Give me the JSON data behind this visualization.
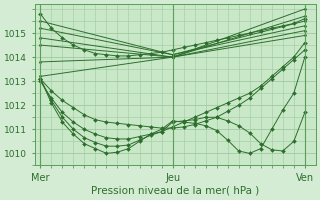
{
  "background_color": "#d4ecd4",
  "plot_bg_color": "#c8e8c8",
  "grid_color": "#a0c8a0",
  "line_color": "#2d6e2d",
  "marker_color": "#2d6e2d",
  "xlabel": "Pression niveau de la mer( hPa )",
  "ylim": [
    1009.5,
    1016.2
  ],
  "yticks": [
    1010,
    1011,
    1012,
    1013,
    1014,
    1015
  ],
  "xtick_labels": [
    "Mer",
    "Jeu",
    "Ven"
  ],
  "xtick_positions": [
    0,
    12,
    24
  ],
  "xlim": [
    -0.5,
    25
  ],
  "series": [
    {
      "x": [
        0,
        1,
        2,
        3,
        4,
        5,
        6,
        7,
        8,
        9,
        10,
        11,
        12,
        13,
        14,
        15,
        16,
        17,
        18,
        19,
        20,
        21,
        22,
        23,
        24
      ],
      "y": [
        1015.8,
        1015.2,
        1014.8,
        1014.5,
        1014.3,
        1014.15,
        1014.1,
        1014.05,
        1014.05,
        1014.1,
        1014.15,
        1014.2,
        1014.3,
        1014.4,
        1014.5,
        1014.6,
        1014.7,
        1014.8,
        1014.9,
        1015.0,
        1015.1,
        1015.2,
        1015.3,
        1015.4,
        1015.6
      ]
    },
    {
      "x": [
        0,
        12,
        24
      ],
      "y": [
        1015.5,
        1014.1,
        1015.5
      ]
    },
    {
      "x": [
        0,
        12,
        24
      ],
      "y": [
        1015.2,
        1014.1,
        1015.3
      ]
    },
    {
      "x": [
        0,
        12,
        24
      ],
      "y": [
        1014.8,
        1014.0,
        1015.1
      ]
    },
    {
      "x": [
        0,
        12,
        24
      ],
      "y": [
        1014.5,
        1014.0,
        1014.9
      ]
    },
    {
      "x": [
        0,
        12,
        24
      ],
      "y": [
        1013.8,
        1014.0,
        1015.7
      ]
    },
    {
      "x": [
        0,
        12,
        24
      ],
      "y": [
        1013.2,
        1014.0,
        1016.0
      ]
    },
    {
      "x": [
        0,
        1,
        2,
        3,
        4,
        5,
        6,
        7,
        8,
        9,
        10,
        11,
        12,
        13,
        14,
        15,
        16,
        17,
        18,
        19,
        20,
        21,
        22,
        23,
        24
      ],
      "y": [
        1013.1,
        1012.6,
        1012.2,
        1011.9,
        1011.6,
        1011.4,
        1011.3,
        1011.25,
        1011.2,
        1011.15,
        1011.1,
        1011.05,
        1011.05,
        1011.1,
        1011.2,
        1011.35,
        1011.5,
        1011.75,
        1012.0,
        1012.3,
        1012.7,
        1013.1,
        1013.5,
        1013.9,
        1014.3
      ]
    },
    {
      "x": [
        0,
        1,
        2,
        3,
        4,
        5,
        6,
        7,
        8,
        9,
        10,
        11,
        12,
        13,
        14,
        15,
        16,
        17,
        18,
        19,
        20,
        21,
        22,
        23,
        24
      ],
      "y": [
        1013.0,
        1012.3,
        1011.7,
        1011.3,
        1011.0,
        1010.8,
        1010.65,
        1010.6,
        1010.6,
        1010.7,
        1010.8,
        1010.9,
        1011.1,
        1011.3,
        1011.5,
        1011.7,
        1011.9,
        1012.1,
        1012.3,
        1012.5,
        1012.8,
        1013.2,
        1013.6,
        1014.0,
        1014.6
      ]
    },
    {
      "x": [
        0,
        1,
        2,
        3,
        4,
        5,
        6,
        7,
        8,
        9,
        10,
        11,
        12,
        13,
        14,
        15,
        16,
        17,
        18,
        19,
        20,
        21,
        22,
        23,
        24
      ],
      "y": [
        1013.1,
        1012.2,
        1011.5,
        1011.0,
        1010.65,
        1010.45,
        1010.3,
        1010.3,
        1010.35,
        1010.55,
        1010.75,
        1010.9,
        1011.3,
        1011.35,
        1011.4,
        1011.5,
        1011.5,
        1011.35,
        1011.15,
        1010.85,
        1010.4,
        1010.15,
        1010.1,
        1010.5,
        1011.7
      ]
    },
    {
      "x": [
        0,
        1,
        2,
        3,
        4,
        5,
        6,
        7,
        8,
        9,
        10,
        11,
        12,
        13,
        14,
        15,
        16,
        17,
        18,
        19,
        20,
        21,
        22,
        23,
        24
      ],
      "y": [
        1013.1,
        1012.1,
        1011.3,
        1010.8,
        1010.4,
        1010.2,
        1010.0,
        1010.05,
        1010.2,
        1010.5,
        1010.8,
        1011.0,
        1011.35,
        1011.3,
        1011.25,
        1011.15,
        1010.95,
        1010.55,
        1010.1,
        1010.0,
        1010.2,
        1011.0,
        1011.8,
        1012.5,
        1014.0
      ]
    }
  ]
}
